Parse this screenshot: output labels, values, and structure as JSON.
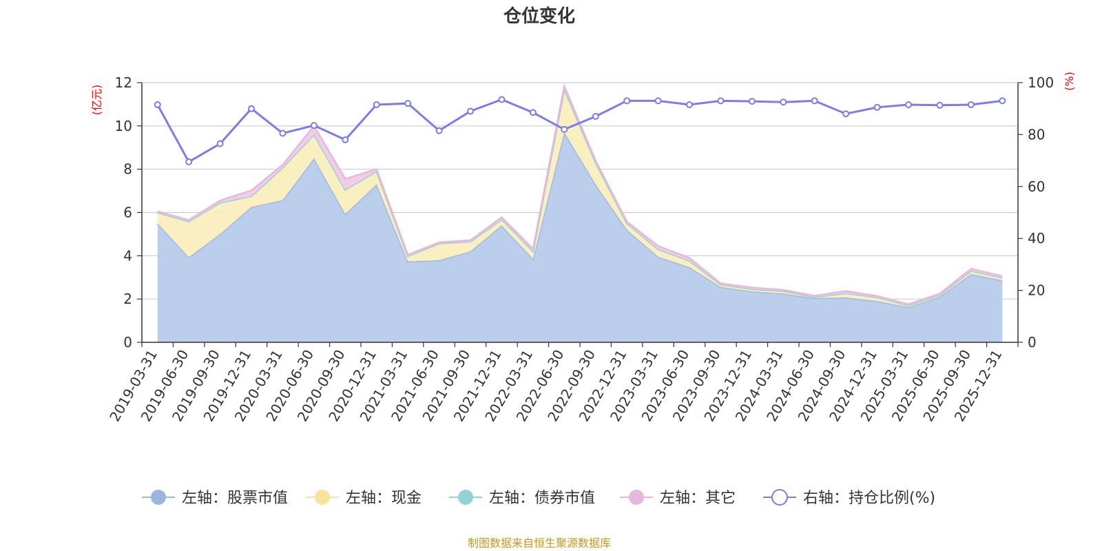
{
  "chart_data": {
    "type": "area",
    "title": "仓位变化",
    "left_unit": "(亿元)",
    "right_unit": "(%)",
    "unit_color": "#ff0000",
    "categories": [
      "2019-03-31",
      "2019-06-30",
      "2019-09-30",
      "2019-12-31",
      "2020-03-31",
      "2020-06-30",
      "2020-09-30",
      "2020-12-31",
      "2021-03-31",
      "2021-06-30",
      "2021-09-30",
      "2021-12-31",
      "2022-03-31",
      "2022-06-30",
      "2022-09-30",
      "2022-12-31",
      "2023-03-31",
      "2023-06-30",
      "2023-09-30",
      "2023-12-31",
      "2024-03-31",
      "2024-06-30",
      "2024-09-30",
      "2024-12-31",
      "2025-03-31",
      "2025-06-30",
      "2025-09-30",
      "2025-12-31"
    ],
    "left_axis": {
      "min": 0,
      "max": 12,
      "ticks": [
        0,
        2,
        4,
        6,
        8,
        10,
        12
      ]
    },
    "right_axis": {
      "min": 0,
      "max": 100,
      "ticks": [
        0,
        20,
        40,
        60,
        80,
        100
      ]
    },
    "series": [
      {
        "name": "左轴：股票市值",
        "axis": "left",
        "kind": "area",
        "color": "#9ab5de",
        "fill": "#b7cbea",
        "values": [
          5.5,
          3.93,
          5.0,
          6.25,
          6.57,
          8.5,
          5.92,
          7.3,
          3.73,
          3.79,
          4.2,
          5.4,
          3.85,
          9.7,
          7.3,
          5.2,
          3.95,
          3.47,
          2.56,
          2.35,
          2.25,
          2.04,
          2.07,
          1.9,
          1.62,
          2.1,
          3.15,
          2.86
        ]
      },
      {
        "name": "左轴：现金",
        "axis": "left",
        "kind": "area",
        "color": "#f8e39c",
        "fill": "#faeebe",
        "values": [
          0.5,
          1.65,
          1.45,
          0.5,
          1.5,
          1.1,
          1.13,
          0.6,
          0.25,
          0.78,
          0.45,
          0.28,
          0.35,
          2.0,
          1.0,
          0.3,
          0.35,
          0.3,
          0.11,
          0.1,
          0.12,
          0.05,
          0.2,
          0.18,
          0.08,
          0.08,
          0.15,
          0.12
        ]
      },
      {
        "name": "左轴：债券市值",
        "axis": "left",
        "kind": "area",
        "color": "#8fd3d3",
        "fill": "#b8e3e3",
        "values": [
          0,
          0,
          0,
          0,
          0,
          0,
          0,
          0,
          0,
          0,
          0,
          0,
          0,
          0,
          0,
          0,
          0,
          0,
          0,
          0,
          0,
          0,
          0,
          0,
          0,
          0,
          0,
          0
        ]
      },
      {
        "name": "左轴：其它",
        "axis": "left",
        "kind": "area",
        "color": "#e8b8dc",
        "fill": "#efcbe6",
        "values": [
          0.05,
          0.07,
          0.1,
          0.27,
          0.13,
          0.4,
          0.5,
          0.1,
          0.07,
          0.05,
          0.07,
          0.1,
          0.12,
          0.14,
          0.1,
          0.08,
          0.15,
          0.13,
          0.05,
          0.08,
          0.05,
          0.06,
          0.1,
          0.06,
          0.06,
          0.07,
          0.1,
          0.08
        ]
      },
      {
        "name": "右轴：持仓比例(%)",
        "axis": "right",
        "kind": "line",
        "color": "#7b7bea",
        "fill": "#ffffff",
        "values": [
          91.5,
          69.5,
          76.5,
          90,
          80.5,
          83.5,
          78,
          91.5,
          92,
          81.5,
          89,
          93.5,
          88.5,
          82,
          87,
          93,
          93,
          91.5,
          93,
          92.8,
          92.5,
          93,
          88,
          90.5,
          91.5,
          91.3,
          91.5,
          93
        ]
      }
    ]
  },
  "source": {
    "text": "制图数据来自恒生聚源数据库",
    "color": "#c8961e"
  }
}
